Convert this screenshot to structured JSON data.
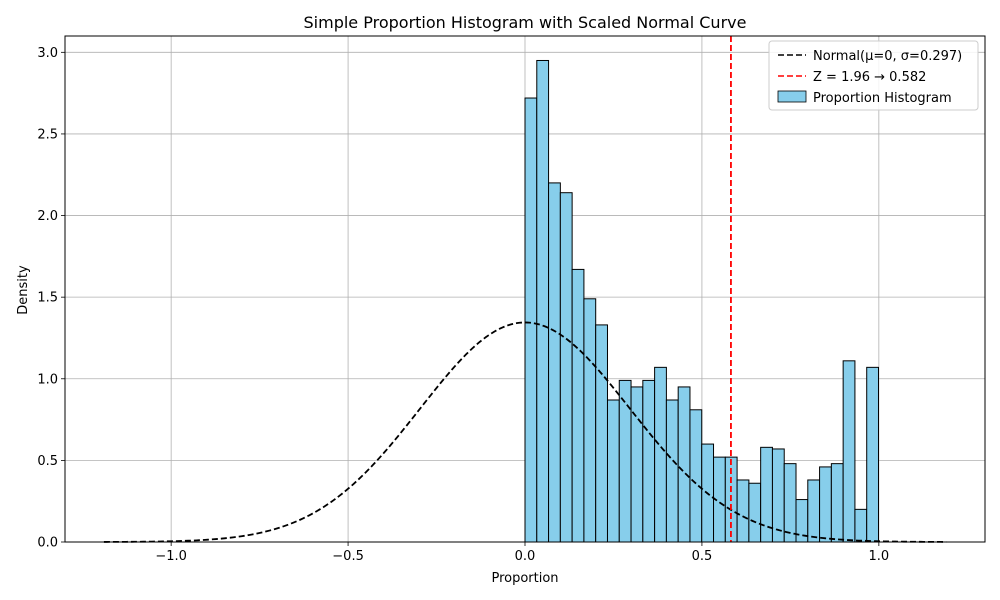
{
  "chart_data": {
    "type": "bar",
    "title": "Simple Proportion Histogram with Scaled Normal Curve",
    "xlabel": "Proportion",
    "ylabel": "Density",
    "xlim": [
      -1.3,
      1.3
    ],
    "ylim": [
      0,
      3.1
    ],
    "xticks": [
      -1.0,
      -0.5,
      0.0,
      0.5,
      1.0
    ],
    "xtick_labels": [
      "−1.0",
      "−0.5",
      "0.0",
      "0.5",
      "1.0"
    ],
    "yticks": [
      0.0,
      0.5,
      1.0,
      1.5,
      2.0,
      2.5,
      3.0
    ],
    "ytick_labels": [
      "0.0",
      "0.5",
      "1.0",
      "1.5",
      "2.0",
      "2.5",
      "3.0"
    ],
    "grid": true,
    "legend_position": "top-right",
    "histogram": {
      "name": "Proportion Histogram",
      "bin_start": 0.0,
      "bin_width": 0.0333,
      "values": [
        2.72,
        2.95,
        2.2,
        2.14,
        1.67,
        1.49,
        1.33,
        0.87,
        0.99,
        0.95,
        0.99,
        1.07,
        0.87,
        0.95,
        0.81,
        0.6,
        0.52,
        0.52,
        0.38,
        0.36,
        0.58,
        0.57,
        0.48,
        0.26,
        0.38,
        0.46,
        0.48,
        1.11,
        0.2,
        1.07
      ],
      "fill_color": "#87ceeb",
      "edge_color": "#000000"
    },
    "normal_curve": {
      "name": "Normal(μ=0, σ=0.297)",
      "mu": 0,
      "sigma": 0.297,
      "x_range": [
        -1.19,
        1.19
      ],
      "peak_density": 1.345,
      "color": "#000000",
      "style": "dashed"
    },
    "critical_line": {
      "name": "Z = 1.96 → 0.582",
      "x": 0.582,
      "color": "#ff0000",
      "style": "dashed"
    }
  }
}
